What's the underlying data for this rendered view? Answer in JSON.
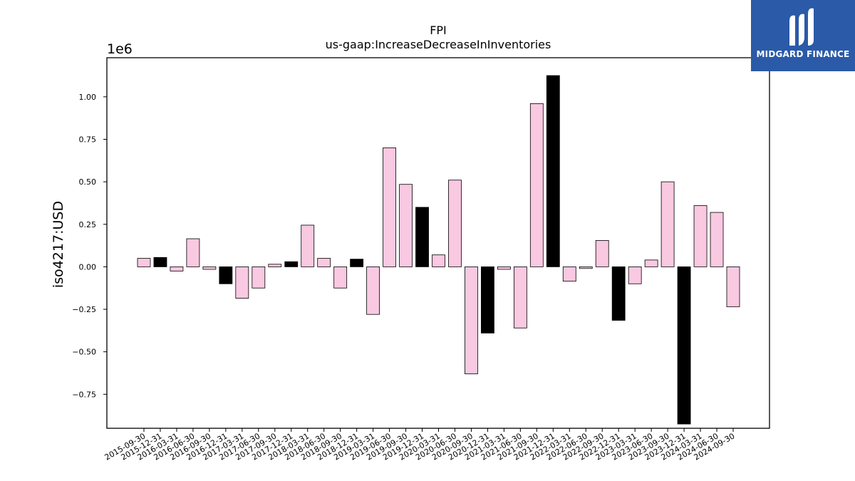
{
  "chart_data": {
    "type": "bar",
    "title": "FPI",
    "subtitle": "us-gaap:IncreaseDecreaseInInventories",
    "ylabel": "iso4217:USD",
    "xlabel": "",
    "scale_label": "1e6",
    "y_multiplier": 1000000,
    "ylim": [
      -0.95,
      1.23
    ],
    "yticks": [
      -0.75,
      -0.5,
      -0.25,
      0.0,
      0.25,
      0.5,
      0.75,
      1.0
    ],
    "ytick_labels": [
      "−0.75",
      "−0.50",
      "−0.25",
      "0.00",
      "0.25",
      "0.50",
      "0.75",
      "1.00"
    ],
    "grid": false,
    "colors": {
      "default": "#f9c8e1",
      "highlight": "#000000",
      "edge": "#000000"
    },
    "categories": [
      "2015-09-30",
      "2015-12-31",
      "2016-03-31",
      "2016-06-30",
      "2016-09-30",
      "2016-12-31",
      "2017-03-31",
      "2017-06-30",
      "2017-09-30",
      "2017-12-31",
      "2018-03-31",
      "2018-06-30",
      "2018-09-30",
      "2018-12-31",
      "2019-03-31",
      "2019-06-30",
      "2019-09-30",
      "2019-12-31",
      "2020-03-31",
      "2020-06-30",
      "2020-09-30",
      "2020-12-31",
      "2021-03-31",
      "2021-06-30",
      "2021-09-30",
      "2021-12-31",
      "2022-03-31",
      "2022-06-30",
      "2022-09-30",
      "2022-12-31",
      "2023-03-31",
      "2023-06-30",
      "2023-09-30",
      "2023-12-31",
      "2024-03-31",
      "2024-06-30",
      "2024-09-30"
    ],
    "values": [
      0.05,
      0.055,
      -0.025,
      0.165,
      -0.015,
      -0.1,
      -0.185,
      -0.125,
      0.015,
      0.03,
      0.245,
      0.05,
      -0.125,
      0.045,
      -0.28,
      0.7,
      0.485,
      0.35,
      0.07,
      0.51,
      -0.63,
      -0.39,
      -0.015,
      -0.36,
      0.96,
      1.125,
      -0.085,
      -0.01,
      0.155,
      -0.315,
      -0.1,
      0.04,
      0.5,
      -0.925,
      0.36,
      0.32,
      -0.235
    ],
    "highlighted": [
      false,
      true,
      false,
      false,
      false,
      true,
      false,
      false,
      false,
      true,
      false,
      false,
      false,
      true,
      false,
      false,
      false,
      true,
      false,
      false,
      false,
      true,
      false,
      false,
      false,
      true,
      false,
      false,
      false,
      true,
      false,
      false,
      false,
      true,
      false,
      false,
      false
    ]
  },
  "logo": {
    "text": "MIDGARD FINANCE",
    "icon": "midgard-logo-icon",
    "background": "#2a5aa8"
  }
}
